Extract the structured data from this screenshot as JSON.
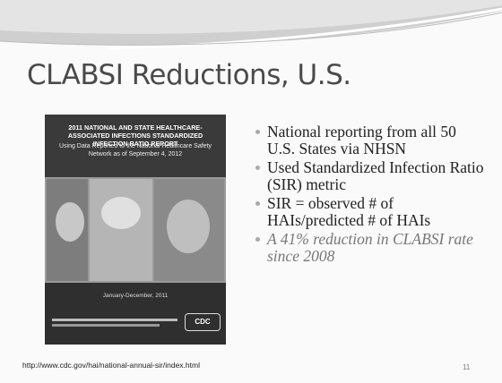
{
  "header": {
    "title": "CLABSI Reductions, U.S."
  },
  "cover": {
    "title": "2011 NATIONAL AND STATE HEALTHCARE-ASSOCIATED INFECTIONS STANDARDIZED INFECTION RATIO REPORT",
    "subtitle": "Using Data Reported to the National Healthcare Safety Network as of September 4, 2012",
    "date": "January-December, 2011",
    "logo": "CDC"
  },
  "bullets": [
    {
      "text": "National reporting from all 50 U.S. States via NHSN",
      "emphasis": false
    },
    {
      "text": "Used Standardized Infection Ratio (SIR) metric",
      "emphasis": false
    },
    {
      "text": "SIR = observed # of HAIs/predicted # of HAIs",
      "emphasis": false
    },
    {
      "text": "A 41% reduction in CLABSI rate since 2008",
      "emphasis": true
    }
  ],
  "footer": {
    "url": "http://www.cdc.gov/hai/national-annual-sir/index.html",
    "page": "11"
  }
}
